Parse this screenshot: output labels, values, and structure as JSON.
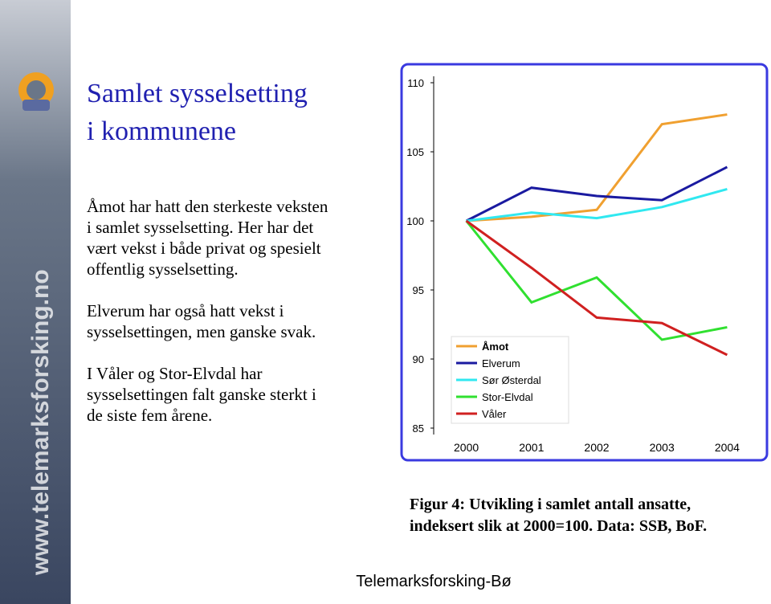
{
  "slide": {
    "title": [
      "Samlet sysselsetting",
      "i kommunene"
    ],
    "paragraphs": [
      [
        "Åmot har hatt den sterkeste veksten",
        "i samlet sysselsetting.  Her har det",
        "vært vekst i både privat og spesielt",
        "offentlig sysselsetting."
      ],
      [
        "Elverum har også hatt vekst i",
        "sysselsettingen, men ganske svak."
      ],
      [
        "I Våler og Stor-Elvdal har",
        "sysselsettingen falt ganske sterkt i",
        "de siste fem årene."
      ]
    ],
    "caption": [
      "Figur 4: Utvikling i samlet antall ansatte,",
      "indeksert slik at 2000=100.  Data: SSB, BoF."
    ],
    "footer": "Telemarksforsking-Bø",
    "sidebar": "www.telemarksforsking.no"
  },
  "chart_data": {
    "type": "line",
    "categories": [
      "2000",
      "2001",
      "2002",
      "2003",
      "2004"
    ],
    "series": [
      {
        "name": "Åmot",
        "color": "#f0a030",
        "values": [
          100,
          100.3,
          100.8,
          107.0,
          107.7
        ]
      },
      {
        "name": "Elverum",
        "color": "#1a1aa0",
        "values": [
          100,
          102.4,
          101.8,
          101.5,
          103.9
        ]
      },
      {
        "name": "Sør Østerdal",
        "color": "#30e8f0",
        "values": [
          100,
          100.6,
          100.2,
          101.0,
          102.3
        ]
      },
      {
        "name": "Stor-Elvdal",
        "color": "#30e030",
        "values": [
          100,
          94.1,
          95.9,
          91.4,
          92.3
        ]
      },
      {
        "name": "Våler",
        "color": "#d02020",
        "values": [
          100,
          96.6,
          93.0,
          92.6,
          90.3
        ]
      }
    ],
    "ylim": [
      85,
      110
    ],
    "yticks": [
      85,
      90,
      95,
      100,
      105,
      110
    ],
    "grid": false,
    "legend": "lower-left"
  }
}
